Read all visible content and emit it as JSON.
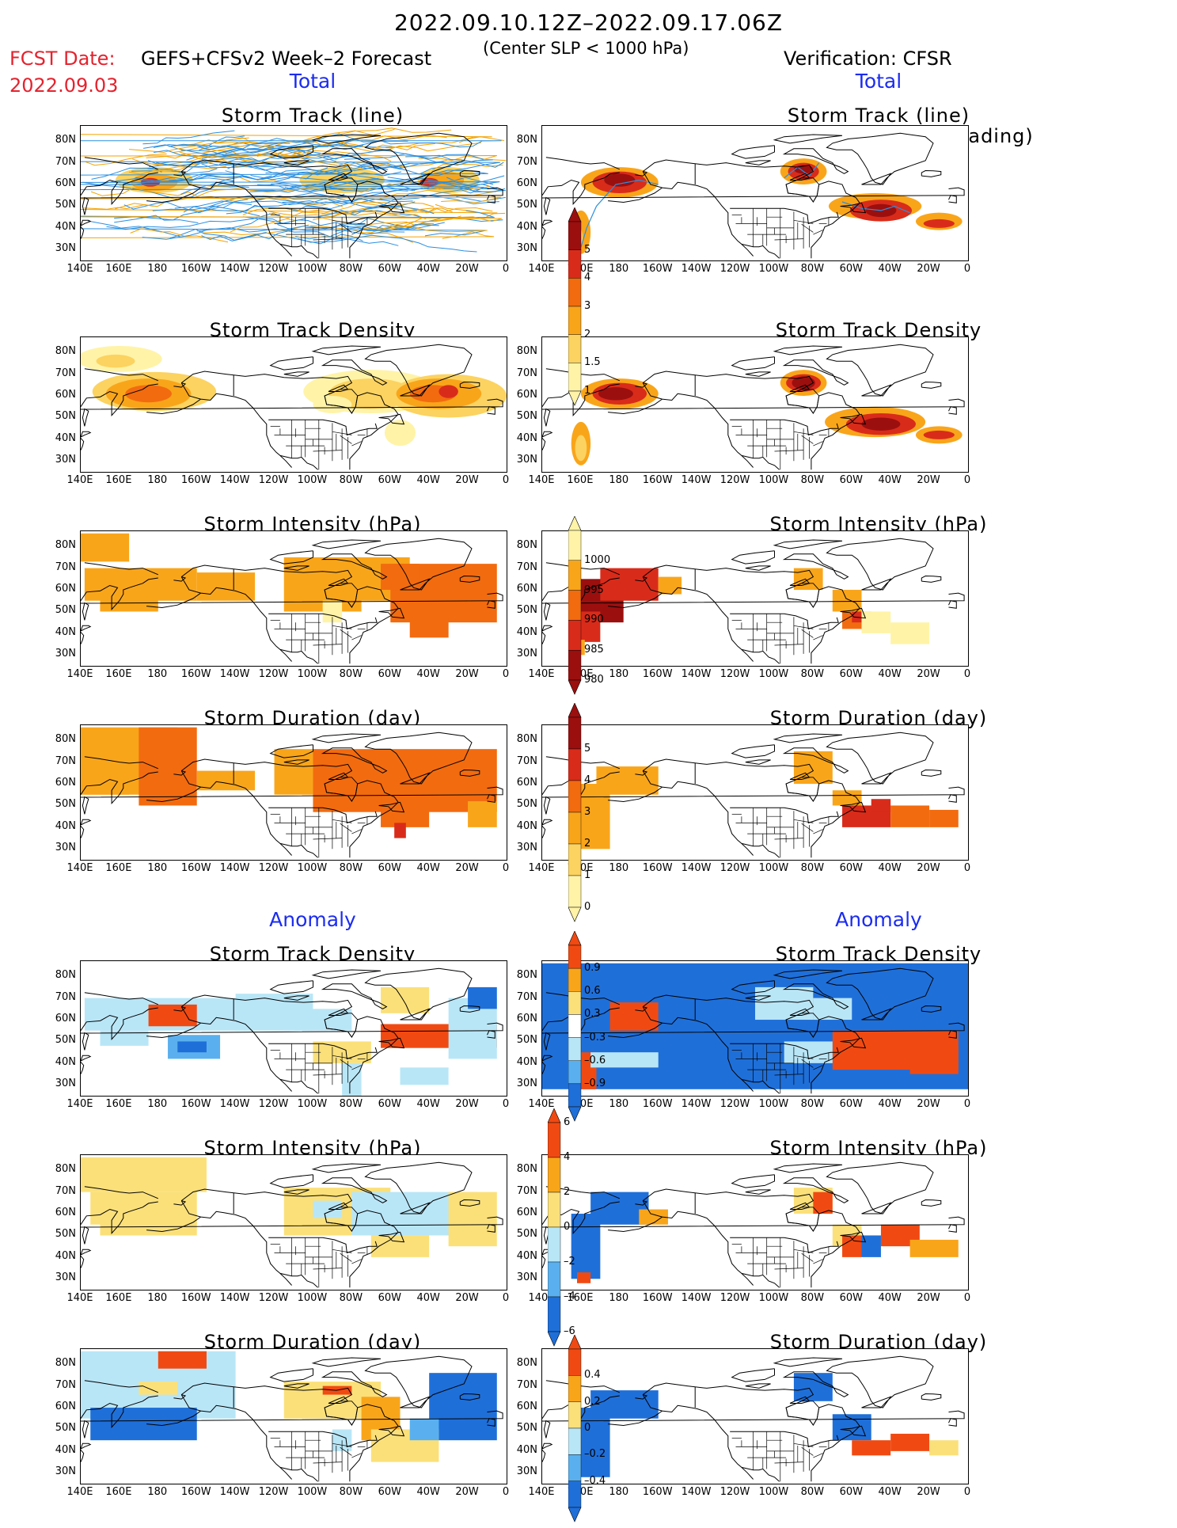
{
  "header": {
    "period": "2022.09.10.12Z–2022.09.17.06Z",
    "fcst_date_label": "FCST Date:",
    "fcst_date": "2022.09.03",
    "model": "GEFS+CFSv2 Week–2 Forecast",
    "condition": "(Center SLP < 1000 hPa)",
    "verification": "Verification: CFSR"
  },
  "sections": {
    "total": "Total",
    "anomaly": "Anomaly"
  },
  "panel_titles": {
    "track_line": "Storm Track (line)",
    "track_density_shading": "Storm Track Density (shading)",
    "track_density": "Storm Track Density",
    "intensity": "Storm Intensity (hPa)",
    "duration": "Storm Duration (day)"
  },
  "axes": {
    "lat_labels": [
      "80N",
      "70N",
      "60N",
      "50N",
      "40N",
      "30N"
    ],
    "lon_labels": [
      "140E",
      "160E",
      "180",
      "160W",
      "140W",
      "120W",
      "100W",
      "80W",
      "60W",
      "40W",
      "20W",
      "0"
    ]
  },
  "colorbars": {
    "density_total": {
      "labels": [
        "5",
        "4",
        "3",
        "2",
        "1.5",
        "1"
      ],
      "colors": [
        "#9b0f0f",
        "#d92b1a",
        "#f26b0f",
        "#f9a51a",
        "#fcd360",
        "#fff3a8"
      ]
    },
    "intensity_total": {
      "labels": [
        "1000",
        "995",
        "990",
        "985",
        "980"
      ],
      "colors": [
        "#fff3a8",
        "#f9a51a",
        "#f26b0f",
        "#d92b1a",
        "#9b0f0f"
      ]
    },
    "duration_total": {
      "labels": [
        "5",
        "4",
        "3",
        "2",
        "1",
        "0"
      ],
      "colors": [
        "#9b0f0f",
        "#d92b1a",
        "#f26b0f",
        "#f9a51a",
        "#fcd360",
        "#fff3a8"
      ]
    },
    "density_anom": {
      "labels": [
        "0.9",
        "0.6",
        "0.3",
        "–0.3",
        "–0.6",
        "–0.9"
      ],
      "colors": [
        "#f04a12",
        "#f9a51a",
        "#fbe07a",
        "#ffffff",
        "#b9e6f7",
        "#5ab0ee",
        "#1f6fd9"
      ]
    },
    "intensity_anom": {
      "labels": [
        "6",
        "4",
        "2",
        "0",
        "–2",
        "–4",
        "–6"
      ],
      "colors": [
        "#f04a12",
        "#f9a51a",
        "#fbe07a",
        "#b9e6f7",
        "#5ab0ee",
        "#1f6fd9"
      ]
    },
    "duration_anom": {
      "labels": [
        "0.4",
        "0.2",
        "0",
        "–0.2",
        "–0.4"
      ],
      "colors": [
        "#f04a12",
        "#f9a51a",
        "#fbe07a",
        "#b9e6f7",
        "#5ab0ee",
        "#1f6fd9"
      ]
    }
  },
  "colors": {
    "header_red": "#e4232e",
    "section_blue": "#1b2cf0",
    "track_line": "#2a8fe0"
  }
}
